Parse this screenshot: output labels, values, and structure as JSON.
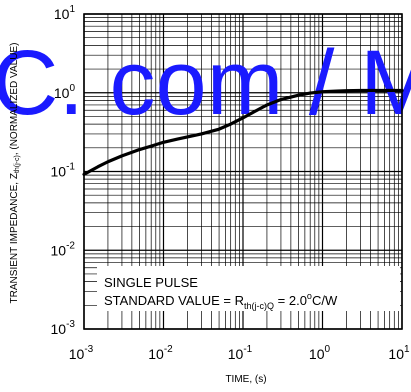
{
  "chart_data": {
    "type": "line",
    "xscale": "log",
    "yscale": "log",
    "xlim": [
      0.001,
      10
    ],
    "ylim": [
      0.001,
      10
    ],
    "grid": true,
    "xlabel": "TIME, (s)",
    "ylabel": {
      "prefix": "TRANSIENT  IMPEDANCE, Z",
      "sub": "th(j-c)",
      "suffix": ", (NORMALIZED VALUE)"
    },
    "x_ticks": [
      {
        "value": 0.001,
        "base": "10",
        "exp": "-3"
      },
      {
        "value": 0.01,
        "base": "10",
        "exp": "-2"
      },
      {
        "value": 0.1,
        "base": "10",
        "exp": "-1"
      },
      {
        "value": 1,
        "base": "10",
        "exp": "0"
      },
      {
        "value": 10,
        "base": "10",
        "exp": "1"
      }
    ],
    "y_ticks": [
      {
        "value": 10,
        "base": "10",
        "exp": "1"
      },
      {
        "value": 1,
        "base": "10",
        "exp": "0"
      },
      {
        "value": 0.1,
        "base": "10",
        "exp": "-1"
      },
      {
        "value": 0.01,
        "base": "10",
        "exp": "-2"
      },
      {
        "value": 0.001,
        "base": "10",
        "exp": "-3"
      }
    ],
    "series": [
      {
        "x": [
          0.001,
          0.0015,
          0.002,
          0.003,
          0.005,
          0.007,
          0.01,
          0.015,
          0.02,
          0.03,
          0.05,
          0.07,
          0.1,
          0.15,
          0.2,
          0.3,
          0.5,
          0.7,
          1,
          1.5,
          2,
          3,
          5,
          7,
          10
        ],
        "y": [
          0.092,
          0.115,
          0.133,
          0.158,
          0.19,
          0.21,
          0.235,
          0.258,
          0.275,
          0.3,
          0.345,
          0.4,
          0.48,
          0.6,
          0.7,
          0.82,
          0.93,
          0.99,
          1.03,
          1.05,
          1.06,
          1.07,
          1.07,
          1.07,
          1.07
        ],
        "color": "#000000"
      }
    ],
    "annotation": {
      "line1": "SINGLE PULSE",
      "line2_prefix": "STANDARD VALUE = R",
      "line2_sub": "th(j-c)Q",
      "line2_suffix": " = 2.0",
      "line2_degree": "o",
      "line2_unit": "C/W"
    }
  },
  "watermark": {
    "text": "C. com / M",
    "color": "#1a1aff"
  }
}
